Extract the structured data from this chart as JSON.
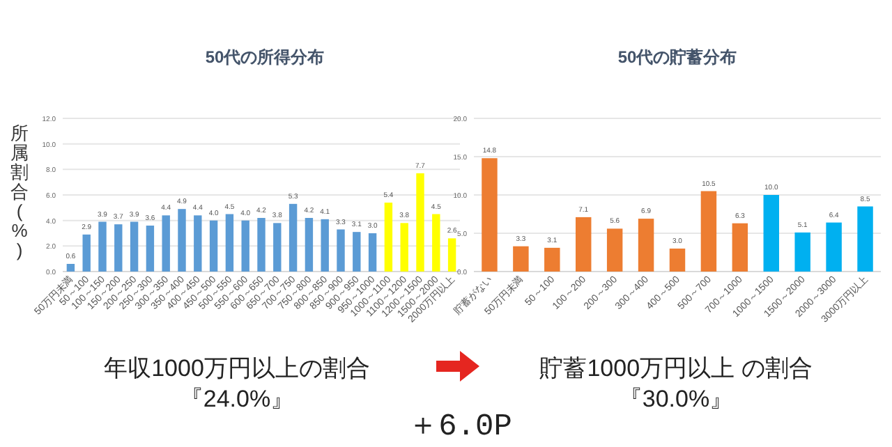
{
  "chart_data": [
    {
      "type": "bar",
      "title": "50代の所得分布",
      "ylabel": "所属割合(%)",
      "categories": [
        "50万円未満",
        "50～100",
        "100～150",
        "150～200",
        "200～250",
        "250～300",
        "300～350",
        "350～400",
        "400～450",
        "450～500",
        "500～550",
        "550～600",
        "600～650",
        "650～700",
        "700～750",
        "750～800",
        "800～850",
        "850～900",
        "900～950",
        "950～1000",
        "1000～1100",
        "1100～1200",
        "1200～1500",
        "1500～2000",
        "2000万円以上"
      ],
      "values": [
        0.6,
        2.9,
        3.9,
        3.7,
        3.9,
        3.6,
        4.4,
        4.9,
        4.4,
        4.0,
        4.5,
        4.0,
        4.2,
        3.8,
        5.3,
        4.2,
        4.1,
        3.3,
        3.1,
        3.0,
        5.4,
        3.8,
        7.7,
        4.5,
        2.6
      ],
      "colors": [
        "#5b9bd5",
        "#5b9bd5",
        "#5b9bd5",
        "#5b9bd5",
        "#5b9bd5",
        "#5b9bd5",
        "#5b9bd5",
        "#5b9bd5",
        "#5b9bd5",
        "#5b9bd5",
        "#5b9bd5",
        "#5b9bd5",
        "#5b9bd5",
        "#5b9bd5",
        "#5b9bd5",
        "#5b9bd5",
        "#5b9bd5",
        "#5b9bd5",
        "#5b9bd5",
        "#5b9bd5",
        "#ffff00",
        "#ffff00",
        "#ffff00",
        "#ffff00",
        "#ffff00"
      ],
      "ylim": [
        0,
        12
      ],
      "yticks": [
        {
          "value": 0,
          "label": "0.0"
        },
        {
          "value": 2,
          "label": "2.0"
        },
        {
          "value": 4,
          "label": "4.0"
        },
        {
          "value": 6,
          "label": "6.0"
        },
        {
          "value": 8,
          "label": "8.0"
        },
        {
          "value": 10,
          "label": "10.0"
        },
        {
          "value": 12,
          "label": "12.0"
        }
      ],
      "grid": "y",
      "value_labels": [
        "0.6",
        "2.9",
        "3.9",
        "3.7",
        "3.9",
        "3.6",
        "4.4",
        "4.9",
        "4.4",
        "4.0",
        "4.5",
        "4.0",
        "4.2",
        "3.8",
        "5.3",
        "4.2",
        "4.1",
        "3.3",
        "3.1",
        "3.0",
        "5.4",
        "3.8",
        "7.7",
        "4.5",
        "2.6"
      ]
    },
    {
      "type": "bar",
      "title": "50代の貯蓄分布",
      "categories": [
        "貯蓄がない",
        "50万円未満",
        "50～100",
        "100～200",
        "200～300",
        "300～400",
        "400～500",
        "500～700",
        "700～1000",
        "1000～1500",
        "1500～2000",
        "2000～3000",
        "3000万円以上"
      ],
      "values": [
        14.8,
        3.3,
        3.1,
        7.1,
        5.6,
        6.9,
        3.0,
        10.5,
        6.3,
        10.0,
        5.1,
        6.4,
        8.5
      ],
      "colors": [
        "#ed7d31",
        "#ed7d31",
        "#ed7d31",
        "#ed7d31",
        "#ed7d31",
        "#ed7d31",
        "#ed7d31",
        "#ed7d31",
        "#ed7d31",
        "#00b0f0",
        "#00b0f0",
        "#00b0f0",
        "#00b0f0"
      ],
      "ylim": [
        0,
        20
      ],
      "yticks": [
        {
          "value": 0,
          "label": "0.0"
        },
        {
          "value": 5,
          "label": "5.0"
        },
        {
          "value": 10,
          "label": "10.0"
        },
        {
          "value": 15,
          "label": "15.0"
        },
        {
          "value": 20,
          "label": "20.0"
        }
      ],
      "grid": "y",
      "value_labels": [
        "14.8",
        "3.3",
        "3.1",
        "7.1",
        "5.6",
        "6.9",
        "3.0",
        "10.5",
        "6.3",
        "10.0",
        "5.1",
        "6.4",
        "8.5"
      ]
    },
    {
      "type": "other",
      "annotations": [
        "年収1000万円以上の割合",
        "『24.0%』",
        "貯蓄1000万円以上 の割合",
        "『30.0%』",
        "＋6.0P"
      ]
    }
  ]
}
